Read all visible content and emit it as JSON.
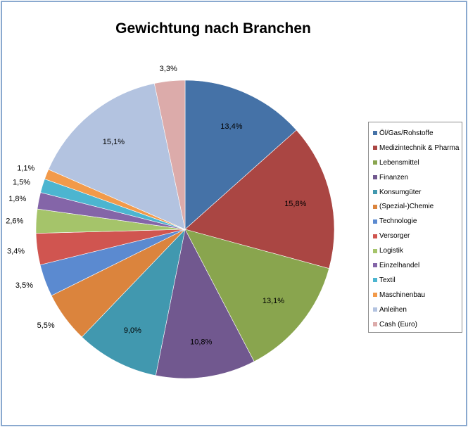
{
  "chart_data": {
    "type": "pie",
    "title": "Gewichtung nach Branchen",
    "legend_position": "right",
    "labels": [
      "Öl/Gas/Rohstoffe",
      "Medizintechnik & Pharma",
      "Lebensmittel",
      "Finanzen",
      "Konsumgüter",
      "(Spezial-)Chemie",
      "Technologie",
      "Versorger",
      "Logistik",
      "Einzelhandel",
      "Textil",
      "Maschinenbau",
      "Anleihen",
      "Cash (Euro)"
    ],
    "values": [
      13.4,
      15.8,
      13.1,
      10.8,
      9.0,
      5.5,
      3.5,
      3.4,
      2.6,
      1.8,
      1.5,
      1.1,
      15.1,
      3.3
    ],
    "value_labels": [
      "13,4%",
      "15,8%",
      "13,1%",
      "10,8%",
      "9,0%",
      "5,5%",
      "3,5%",
      "3,4%",
      "2,6%",
      "1,8%",
      "1,5%",
      "1,1%",
      "15,1%",
      "3,3%"
    ],
    "colors": [
      "#4572a7",
      "#aa4643",
      "#89a54e",
      "#71588f",
      "#4198af",
      "#db843d",
      "#5b8ad0",
      "#d05550",
      "#a5c46a",
      "#8465a8",
      "#4cb5d0",
      "#f29a4a",
      "#b3c3e0",
      "#dcabaa"
    ]
  }
}
